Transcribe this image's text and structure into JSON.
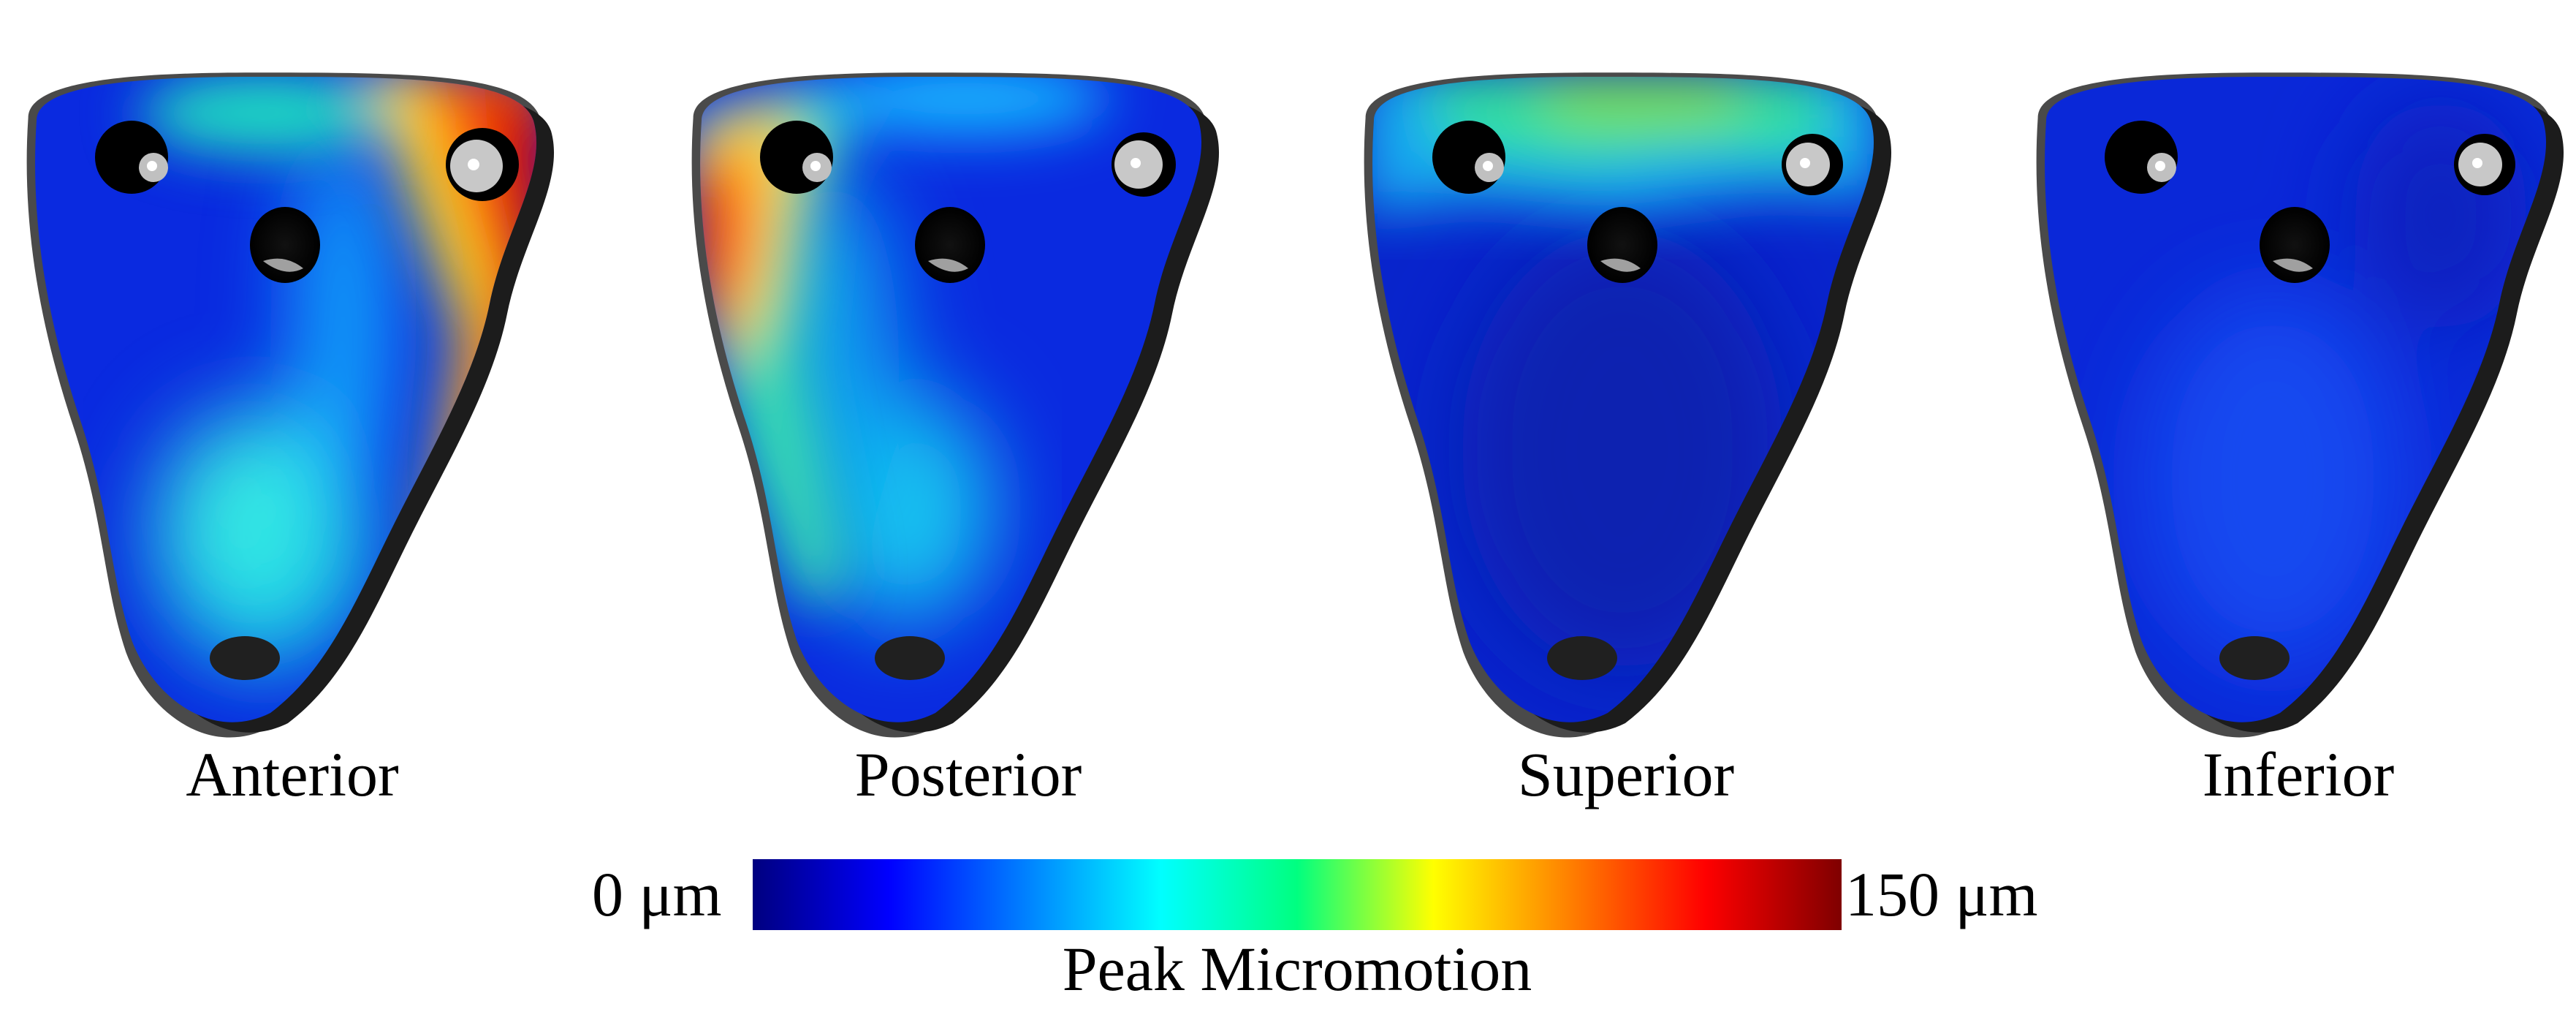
{
  "views": [
    {
      "id": "anterior",
      "label": "Anterior"
    },
    {
      "id": "posterior",
      "label": "Posterior"
    },
    {
      "id": "superior",
      "label": "Superior"
    },
    {
      "id": "inferior",
      "label": "Inferior"
    }
  ],
  "colorbar": {
    "min_label": "0 μm",
    "max_label": "150 μm",
    "title": "Peak Micromotion",
    "colors": [
      "#00007f",
      "#0000ff",
      "#0080ff",
      "#00ffff",
      "#00ff80",
      "#ffff00",
      "#ff8000",
      "#ff0000",
      "#7f0000"
    ]
  }
}
